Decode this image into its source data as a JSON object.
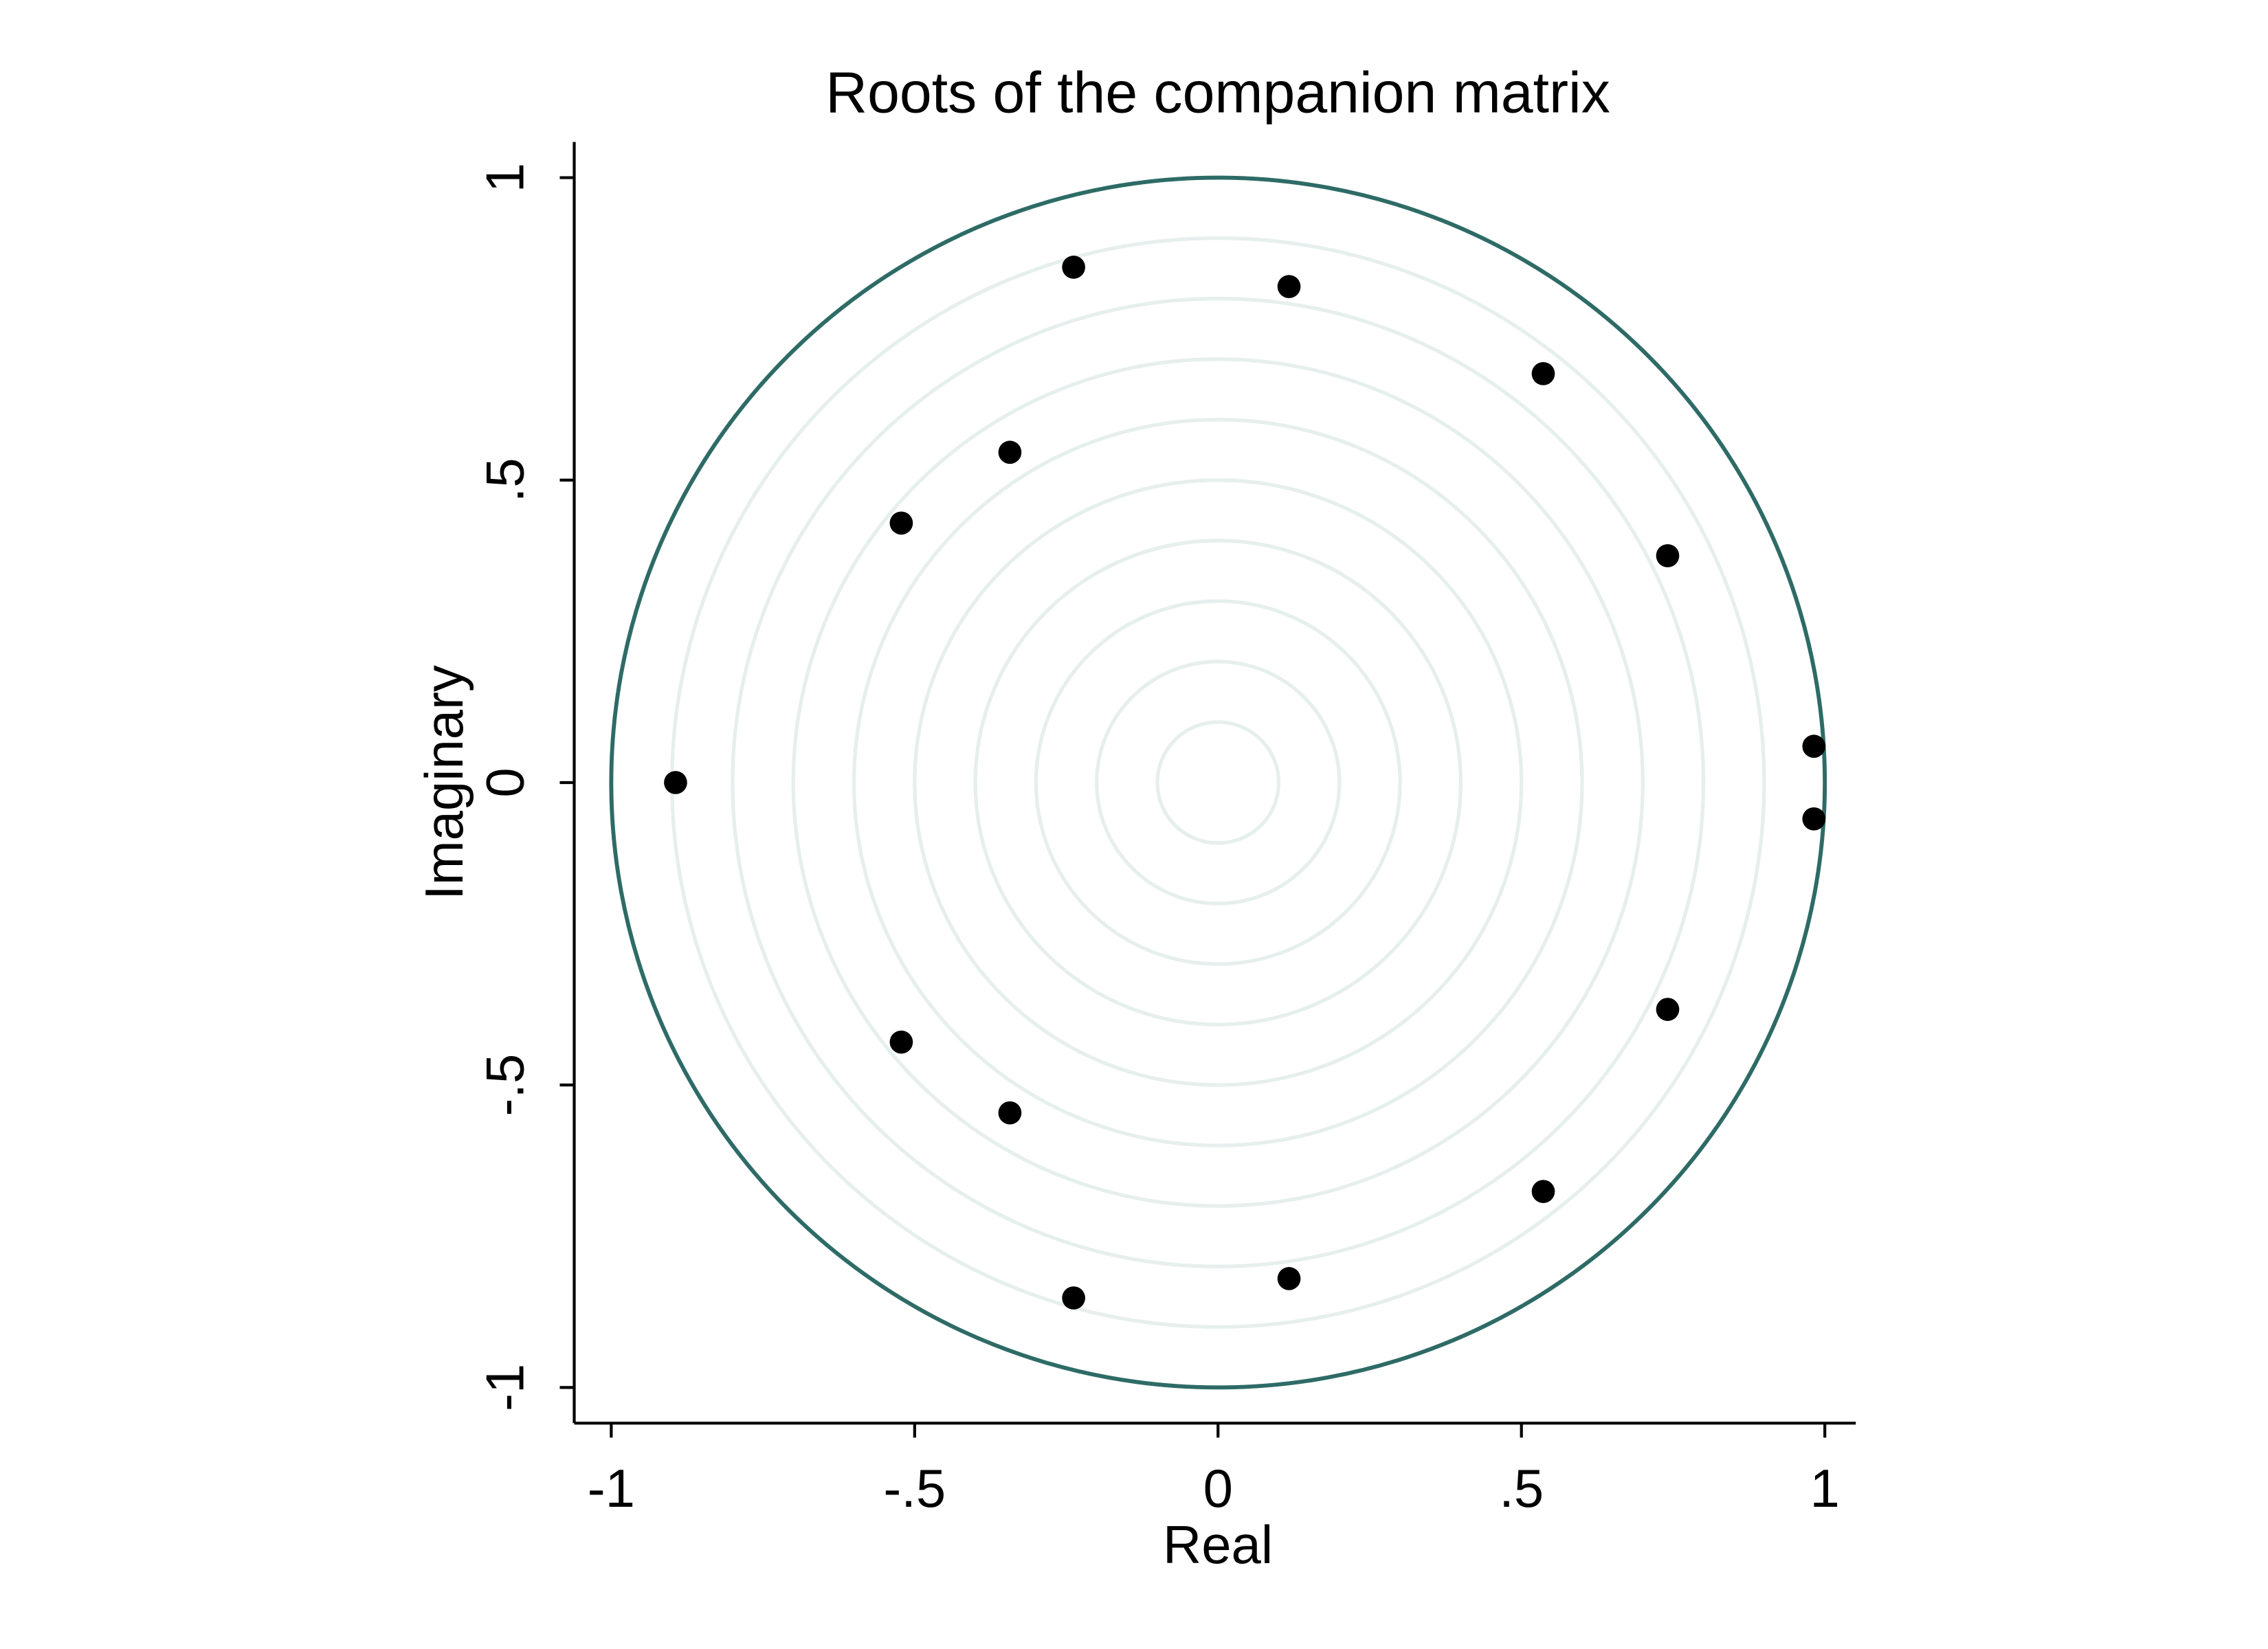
{
  "chart_data": {
    "type": "scatter",
    "title": "Roots of the companion matrix",
    "x_label": "Real",
    "y_label": "Imaginary",
    "x": [
      -0.238,
      0.117,
      0.536,
      -0.343,
      -0.522,
      0.741,
      0.982,
      -0.894,
      0.982,
      0.741,
      -0.522,
      -0.343,
      0.536,
      0.117,
      -0.238
    ],
    "values": [
      0.852,
      0.82,
      0.676,
      0.546,
      0.429,
      0.375,
      0.06,
      0,
      -0.06,
      -0.375,
      -0.429,
      -0.546,
      -0.676,
      -0.82,
      -0.852
    ],
    "color": "#000000",
    "xlim": [
      -1.061,
      1.051
    ],
    "ylim": [
      -1.059,
      1.059
    ],
    "xticks": [
      -1,
      {
        "value": -0.5,
        "label": "-.5"
      },
      0,
      {
        "value": 0.5,
        "label": ".5"
      },
      1
    ],
    "yticks": [
      -1,
      {
        "value": -0.5,
        "label": "-.5"
      },
      0,
      {
        "value": 0.5,
        "label": ".5"
      },
      1
    ],
    "grid_circles": [
      0.1,
      0.2,
      0.3,
      0.4,
      0.5,
      0.6,
      0.7,
      0.8,
      0.9
    ],
    "grid_color": "#e6efed",
    "unit_circle": 1,
    "unit_circle_color": "#2e6b66"
  }
}
